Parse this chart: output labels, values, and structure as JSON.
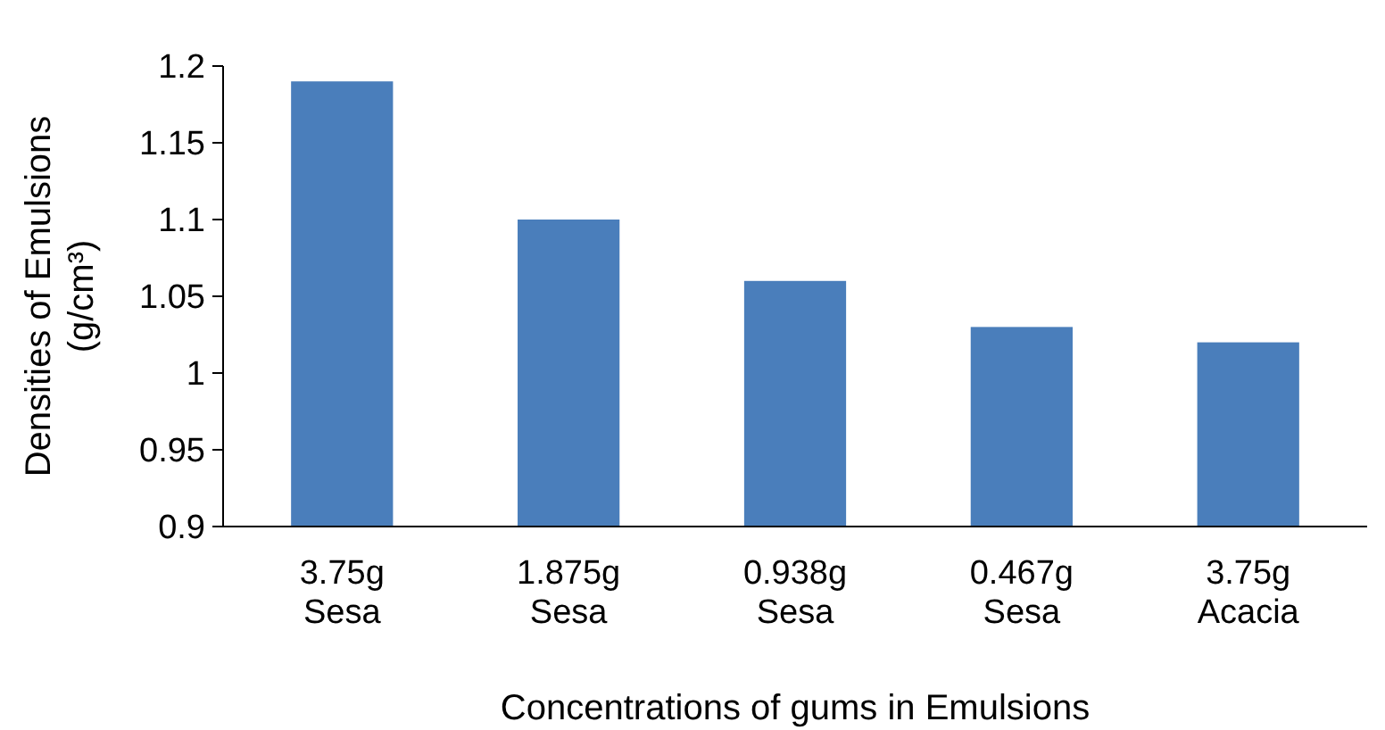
{
  "chart_data": {
    "type": "bar",
    "ylabel": "Densities of Emulsions\n(g/cm³)",
    "xlabel": "Concentrations of gums in Emulsions",
    "categories": [
      "3.75g\nSesa",
      "1.875g\nSesa",
      "0.938g\nSesa",
      "0.467g\nSesa",
      "3.75g\nAcacia"
    ],
    "values": [
      1.19,
      1.1,
      1.06,
      1.03,
      1.02
    ],
    "color": "#4a7ebb",
    "ylim": [
      0.9,
      1.2
    ],
    "yticks": [
      0.9,
      0.95,
      1,
      1.05,
      1.1,
      1.15,
      1.2
    ],
    "grid": false
  }
}
